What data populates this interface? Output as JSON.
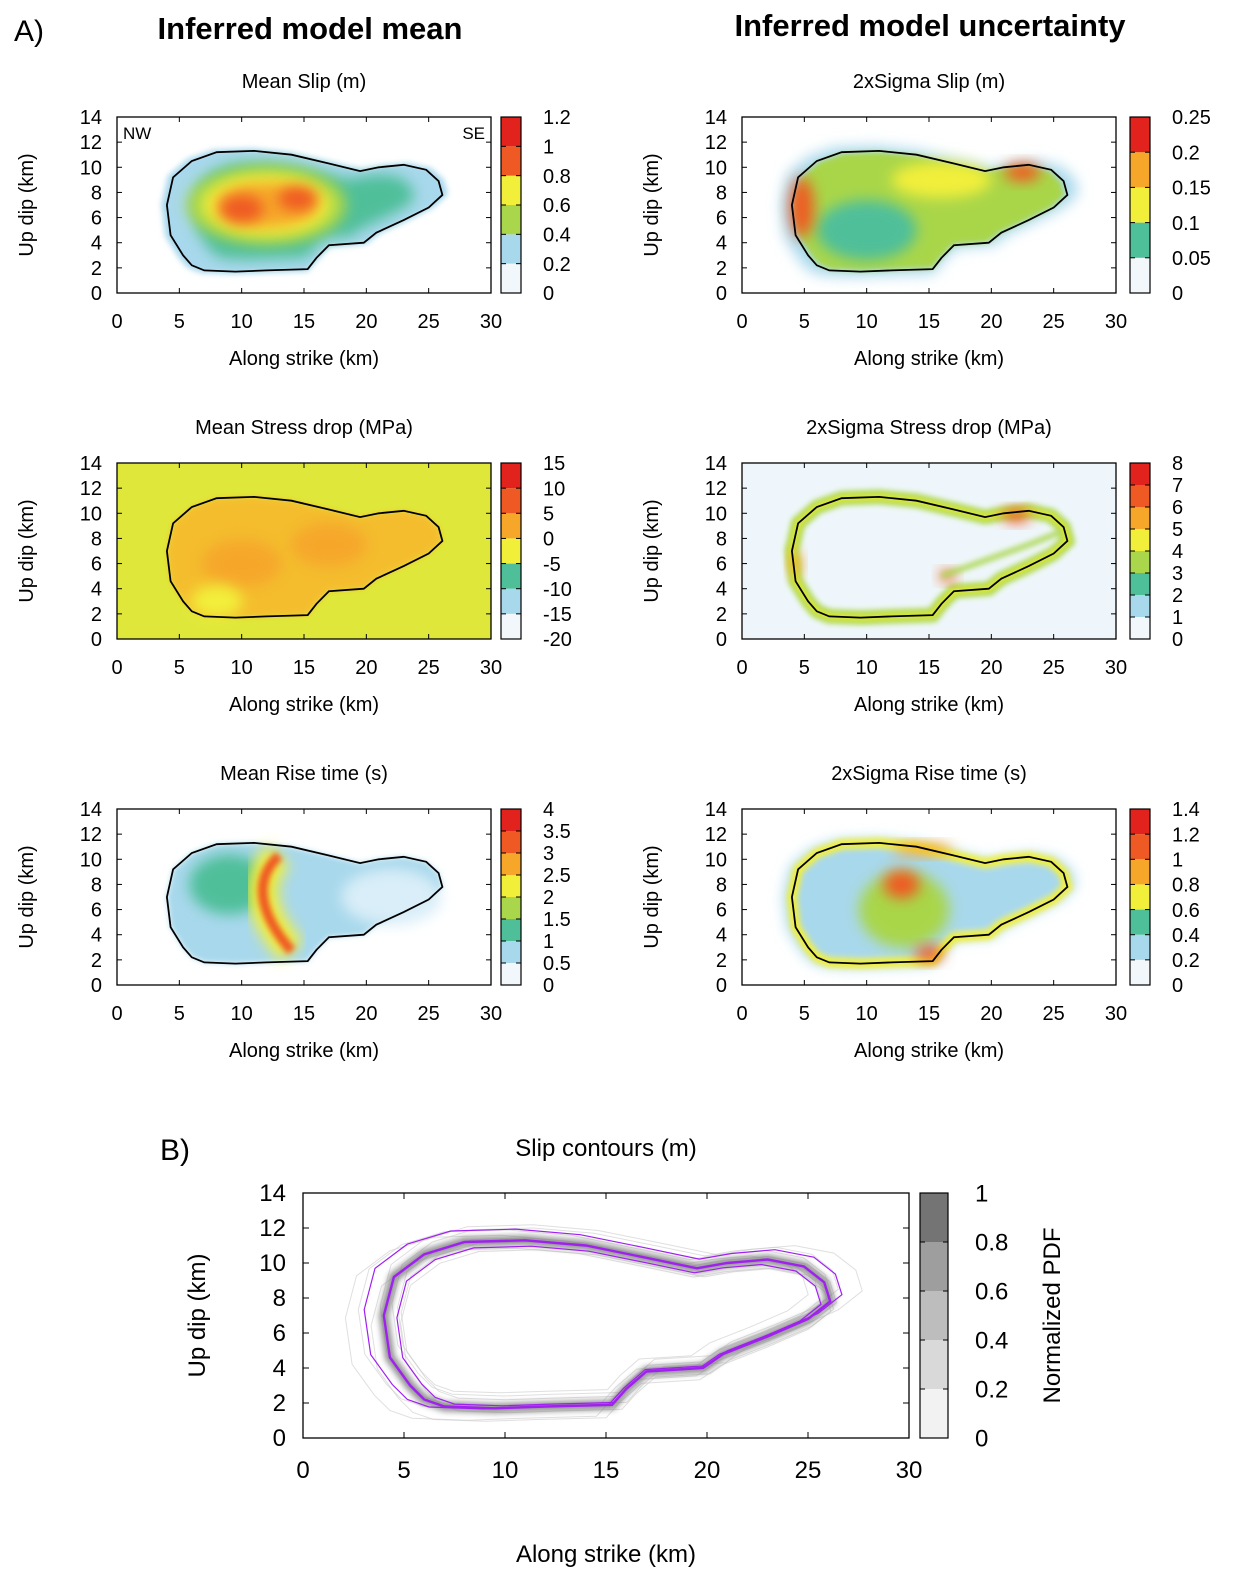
{
  "figure": {
    "label_a": "A)",
    "label_b": "B)",
    "col_left_title": "Inferred model mean",
    "col_right_title": "Inferred model uncertainty",
    "corner_left": "NW",
    "corner_right": "SE"
  },
  "palette": {
    "heat": [
      "#f2f7fb",
      "#a8d8ec",
      "#4fbf9a",
      "#a9d64a",
      "#f2ef3a",
      "#f6a72a",
      "#ef5a24",
      "#e2231d"
    ],
    "rupture_outline": "#000000",
    "stress_background": "#dfe83a",
    "contour_purple": "#a020f0"
  },
  "chart_data": [
    {
      "id": "mean-slip",
      "type": "heatmap",
      "title": "Mean Slip (m)",
      "xlabel": "Along strike (km)",
      "ylabel": "Up dip (km)",
      "xlim": [
        0,
        30
      ],
      "ylim": [
        0,
        14
      ],
      "xticks": [
        "0",
        "5",
        "10",
        "15",
        "20",
        "25",
        "30"
      ],
      "yticks": [
        "0",
        "2",
        "4",
        "6",
        "8",
        "10",
        "12",
        "14"
      ],
      "colorbar": {
        "min": 0,
        "max": 1.2,
        "ticks": [
          "0",
          "0.2",
          "0.4",
          "0.6",
          "0.8",
          "1",
          "1.2"
        ]
      },
      "peaks": [
        {
          "x": 10,
          "y": 6.7,
          "value": 1.0
        },
        {
          "x": 14.5,
          "y": 7.5,
          "value": 0.95
        }
      ]
    },
    {
      "id": "sigma-slip",
      "type": "heatmap",
      "title": "2xSigma Slip (m)",
      "xlabel": "Along strike (km)",
      "ylabel": "Up dip (km)",
      "xlim": [
        0,
        30
      ],
      "ylim": [
        0,
        14
      ],
      "xticks": [
        "0",
        "5",
        "10",
        "15",
        "20",
        "25",
        "30"
      ],
      "yticks": [
        "0",
        "2",
        "4",
        "6",
        "8",
        "10",
        "12",
        "14"
      ],
      "colorbar": {
        "min": 0,
        "max": 0.25,
        "ticks": [
          "0",
          "0.05",
          "0.1",
          "0.15",
          "0.2",
          "0.25"
        ]
      },
      "peaks": [
        {
          "x": 4.8,
          "y": 6.8,
          "value": 0.24
        },
        {
          "x": 22.5,
          "y": 9.6,
          "value": 0.22
        }
      ]
    },
    {
      "id": "mean-stress",
      "type": "heatmap",
      "title": "Mean Stress drop (MPa)",
      "xlabel": "Along strike (km)",
      "ylabel": "Up dip (km)",
      "xlim": [
        0,
        30
      ],
      "ylim": [
        0,
        14
      ],
      "xticks": [
        "0",
        "5",
        "10",
        "15",
        "20",
        "25",
        "30"
      ],
      "yticks": [
        "0",
        "2",
        "4",
        "6",
        "8",
        "10",
        "12",
        "14"
      ],
      "colorbar": {
        "min": -20,
        "max": 15,
        "ticks": [
          "-20",
          "-15",
          "-10",
          "-5",
          "0",
          "5",
          "10",
          "15"
        ]
      },
      "peaks": [
        {
          "x": 10,
          "y": 6,
          "value": 9
        },
        {
          "x": 17,
          "y": 7.5,
          "value": 9
        }
      ]
    },
    {
      "id": "sigma-stress",
      "type": "heatmap",
      "title": "2xSigma Stress drop (MPa)",
      "xlabel": "Along strike (km)",
      "ylabel": "Up dip (km)",
      "xlim": [
        0,
        30
      ],
      "ylim": [
        0,
        14
      ],
      "xticks": [
        "0",
        "5",
        "10",
        "15",
        "20",
        "25",
        "30"
      ],
      "yticks": [
        "0",
        "2",
        "4",
        "6",
        "8",
        "10",
        "12",
        "14"
      ],
      "colorbar": {
        "min": 0,
        "max": 8,
        "ticks": [
          "0",
          "1",
          "2",
          "3",
          "4",
          "5",
          "6",
          "7",
          "8"
        ]
      },
      "peaks": [
        {
          "x": 22,
          "y": 9.8,
          "value": 7.5
        },
        {
          "x": 16.5,
          "y": 5,
          "value": 6
        }
      ]
    },
    {
      "id": "mean-rise",
      "type": "heatmap",
      "title": "Mean Rise time (s)",
      "xlabel": "Along strike (km)",
      "ylabel": "Up dip (km)",
      "xlim": [
        0,
        30
      ],
      "ylim": [
        0,
        14
      ],
      "xticks": [
        "0",
        "5",
        "10",
        "15",
        "20",
        "25",
        "30"
      ],
      "yticks": [
        "0",
        "2",
        "4",
        "6",
        "8",
        "10",
        "12",
        "14"
      ],
      "colorbar": {
        "min": 0,
        "max": 4,
        "ticks": [
          "0",
          "0.5",
          "1",
          "1.5",
          "2",
          "2.5",
          "3",
          "3.5",
          "4"
        ]
      },
      "peaks": [
        {
          "x": 12.5,
          "y": 9.5,
          "value": 3.5
        },
        {
          "x": 14,
          "y": 3.5,
          "value": 3.2
        }
      ]
    },
    {
      "id": "sigma-rise",
      "type": "heatmap",
      "title": "2xSigma Rise time (s)",
      "xlabel": "Along strike (km)",
      "ylabel": "Up dip (km)",
      "xlim": [
        0,
        30
      ],
      "ylim": [
        0,
        14
      ],
      "xticks": [
        "0",
        "5",
        "10",
        "15",
        "20",
        "25",
        "30"
      ],
      "yticks": [
        "0",
        "2",
        "4",
        "6",
        "8",
        "10",
        "12",
        "14"
      ],
      "colorbar": {
        "min": 0,
        "max": 1.4,
        "ticks": [
          "0",
          "0.2",
          "0.4",
          "0.6",
          "0.8",
          "1",
          "1.2",
          "1.4"
        ]
      },
      "peaks": [
        {
          "x": 12.5,
          "y": 8,
          "value": 1.2
        },
        {
          "x": 15,
          "y": 2.7,
          "value": 1.3
        }
      ]
    },
    {
      "id": "slip-contours",
      "type": "line",
      "title": "Slip contours (m)",
      "xlabel": "Along strike (km)",
      "ylabel": "Up dip (km)",
      "xlim": [
        0,
        30
      ],
      "ylim": [
        0,
        14
      ],
      "xticks": [
        "0",
        "5",
        "10",
        "15",
        "20",
        "25",
        "30"
      ],
      "yticks": [
        "0",
        "2",
        "4",
        "6",
        "8",
        "10",
        "12",
        "14"
      ],
      "colorbar": {
        "label": "Normalized PDF",
        "min": 0,
        "max": 1,
        "ticks": [
          "0",
          "0.2",
          "0.4",
          "0.6",
          "0.8",
          "1"
        ]
      }
    }
  ],
  "rupture_outline_km": [
    [
      7,
      1.8
    ],
    [
      9.5,
      1.7
    ],
    [
      12,
      1.8
    ],
    [
      15.3,
      1.9
    ],
    [
      16,
      2.8
    ],
    [
      17,
      3.8
    ],
    [
      19.8,
      4.0
    ],
    [
      20.8,
      4.8
    ],
    [
      23,
      5.8
    ],
    [
      25,
      6.8
    ],
    [
      26.1,
      7.8
    ],
    [
      25.8,
      8.9
    ],
    [
      24.8,
      9.8
    ],
    [
      23,
      10.2
    ],
    [
      21,
      10.0
    ],
    [
      19.5,
      9.7
    ],
    [
      17,
      10.3
    ],
    [
      14,
      11.0
    ],
    [
      11,
      11.3
    ],
    [
      8,
      11.2
    ],
    [
      6,
      10.5
    ],
    [
      4.5,
      9.2
    ],
    [
      4,
      7
    ],
    [
      4.3,
      4.6
    ],
    [
      5.3,
      3
    ],
    [
      6,
      2.2
    ]
  ]
}
